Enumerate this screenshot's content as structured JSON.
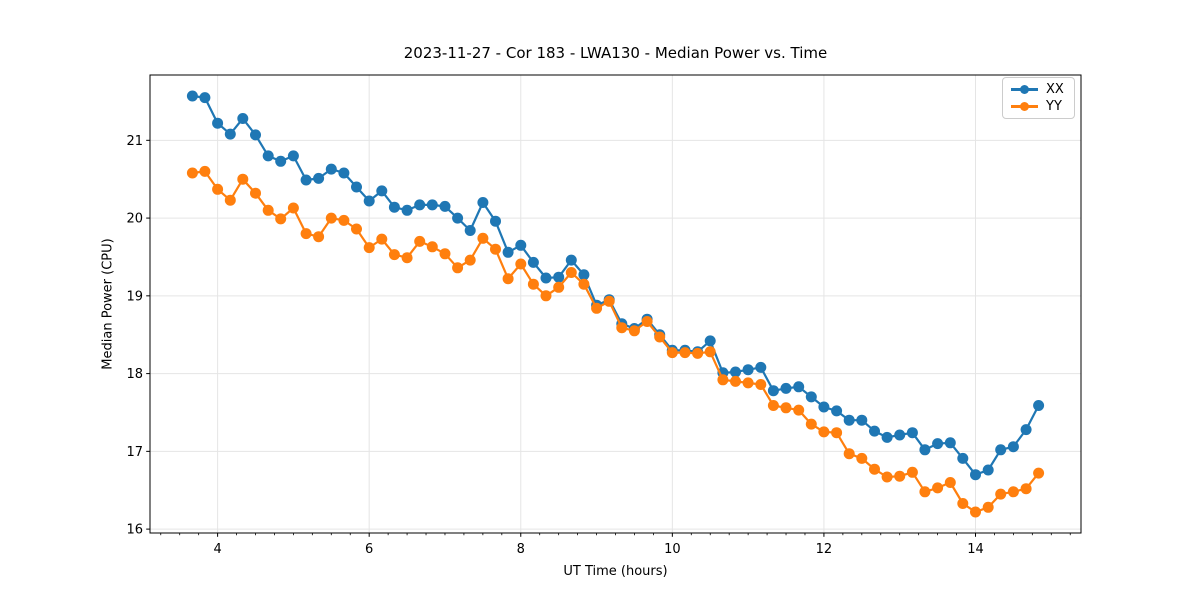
{
  "figure": {
    "background": "#ffffff"
  },
  "chart_data": {
    "type": "line",
    "title": "2023-11-27 - Cor 183 - LWA130 - Median Power vs. Time",
    "xlabel": "UT Time (hours)",
    "ylabel": "Median Power (CPU)",
    "xlim": [
      3.108,
      15.392
    ],
    "ylim": [
      15.95,
      21.84
    ],
    "x_major_ticks": [
      4,
      6,
      8,
      10,
      12,
      14
    ],
    "x_minor_tick_step": 0.25,
    "y_major_ticks": [
      16,
      17,
      18,
      19,
      20,
      21
    ],
    "grid": true,
    "grid_color": "#e5e5e5",
    "axis_color": "#000000",
    "legend_position": "upper-right",
    "x": [
      3.667,
      3.833,
      4.0,
      4.167,
      4.333,
      4.5,
      4.667,
      4.833,
      5.0,
      5.167,
      5.333,
      5.5,
      5.667,
      5.833,
      6.0,
      6.167,
      6.333,
      6.5,
      6.667,
      6.833,
      7.0,
      7.167,
      7.333,
      7.5,
      7.667,
      7.833,
      8.0,
      8.167,
      8.333,
      8.5,
      8.667,
      8.833,
      9.0,
      9.167,
      9.333,
      9.5,
      9.667,
      9.833,
      10.0,
      10.167,
      10.333,
      10.5,
      10.667,
      10.833,
      11.0,
      11.167,
      11.333,
      11.5,
      11.667,
      11.833,
      12.0,
      12.167,
      12.333,
      12.5,
      12.667,
      12.833,
      13.0,
      13.167,
      13.333,
      13.5,
      13.667,
      13.833,
      14.0,
      14.167,
      14.333,
      14.5,
      14.667,
      14.833
    ],
    "series": [
      {
        "name": "XX",
        "color": "#1f77b4",
        "marker": "circle",
        "values": [
          21.57,
          21.55,
          21.22,
          21.08,
          21.28,
          21.07,
          20.8,
          20.73,
          20.8,
          20.49,
          20.51,
          20.63,
          20.58,
          20.4,
          20.22,
          20.35,
          20.14,
          20.1,
          20.17,
          20.17,
          20.15,
          20.0,
          19.84,
          20.2,
          19.96,
          19.56,
          19.65,
          19.43,
          19.23,
          19.24,
          19.46,
          19.27,
          18.88,
          18.95,
          18.64,
          18.58,
          18.7,
          18.5,
          18.3,
          18.3,
          18.28,
          18.42,
          18.01,
          18.02,
          18.05,
          18.08,
          17.78,
          17.81,
          17.83,
          17.7,
          17.57,
          17.52,
          17.4,
          17.4,
          17.26,
          17.18,
          17.21,
          17.24,
          17.02,
          17.1,
          17.11,
          16.91,
          16.7,
          16.76,
          17.02,
          17.06,
          17.28,
          17.59
        ]
      },
      {
        "name": "YY",
        "color": "#ff7f0e",
        "marker": "circle",
        "values": [
          20.58,
          20.6,
          20.37,
          20.23,
          20.5,
          20.32,
          20.1,
          19.99,
          20.13,
          19.8,
          19.76,
          20.0,
          19.97,
          19.86,
          19.62,
          19.73,
          19.53,
          19.49,
          19.7,
          19.63,
          19.54,
          19.36,
          19.46,
          19.74,
          19.6,
          19.22,
          19.41,
          19.15,
          19.0,
          19.11,
          19.3,
          19.15,
          18.84,
          18.93,
          18.59,
          18.55,
          18.67,
          18.47,
          18.27,
          18.27,
          18.26,
          18.28,
          17.92,
          17.9,
          17.88,
          17.86,
          17.59,
          17.56,
          17.53,
          17.35,
          17.25,
          17.24,
          16.97,
          16.91,
          16.77,
          16.67,
          16.68,
          16.73,
          16.48,
          16.53,
          16.6,
          16.33,
          16.22,
          16.28,
          16.45,
          16.48,
          16.52,
          16.72
        ]
      }
    ]
  }
}
